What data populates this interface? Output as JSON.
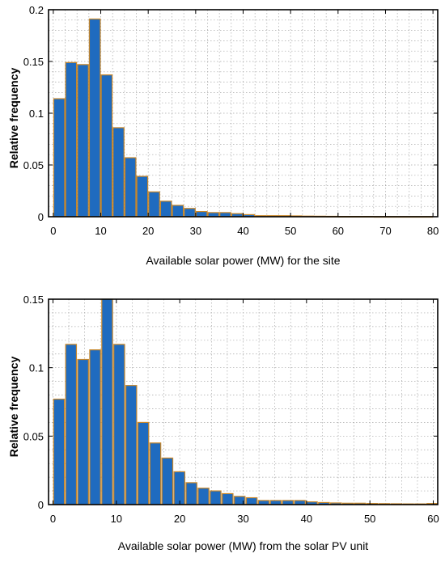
{
  "chart_data": [
    {
      "type": "bar",
      "xlabel": "Available solar power (MW) for the site",
      "ylabel": "Relative frequency",
      "xlim": [
        -1,
        81
      ],
      "ylim": [
        0,
        0.2
      ],
      "xticks": [
        0,
        10,
        20,
        30,
        40,
        50,
        60,
        70,
        80
      ],
      "xtick_labels": [
        "0",
        "10",
        "20",
        "30",
        "40",
        "50",
        "60",
        "70",
        "80"
      ],
      "yticks": [
        0,
        0.05,
        0.1,
        0.15,
        0.2
      ],
      "ytick_labels": [
        "0",
        "0.05",
        "0.1",
        "0.15",
        "0.2"
      ],
      "grid": true,
      "bar_width": 2.3,
      "bar_color": "#1f6bbf",
      "bar_edge_color": "#c8872a",
      "x": [
        1.25,
        3.75,
        6.25,
        8.75,
        11.25,
        13.75,
        16.25,
        18.75,
        21.25,
        23.75,
        26.25,
        28.75,
        31.25,
        33.75,
        36.25,
        38.75,
        41.25,
        43.75,
        46.25,
        48.75,
        51.25,
        53.75,
        56.25,
        58.75,
        61.25,
        63.75,
        66.25,
        68.75,
        71.25,
        73.75,
        76.25,
        78.75
      ],
      "values": [
        0.114,
        0.149,
        0.147,
        0.191,
        0.137,
        0.086,
        0.057,
        0.039,
        0.024,
        0.015,
        0.011,
        0.008,
        0.005,
        0.004,
        0.004,
        0.003,
        0.002,
        0.001,
        0.001,
        0.001,
        0.0008,
        0.0006,
        0.0005,
        0.0004,
        0.0003,
        0.0003,
        0.0003,
        0.0002,
        0.0002,
        0.0002,
        0.0002,
        0.0002
      ]
    },
    {
      "type": "bar",
      "xlabel": "Available solar power (MW) from the solar PV unit",
      "ylabel": "Relative frequency",
      "xlim": [
        -0.7,
        60.7
      ],
      "ylim": [
        0,
        0.15
      ],
      "xticks": [
        0,
        10,
        20,
        30,
        40,
        50,
        60
      ],
      "xtick_labels": [
        "0",
        "10",
        "20",
        "30",
        "40",
        "50",
        "60"
      ],
      "yticks": [
        0,
        0.05,
        0.1,
        0.15
      ],
      "ytick_labels": [
        "0",
        "0.05",
        "0.1",
        "0.15"
      ],
      "grid": true,
      "bar_width": 1.7,
      "bar_color": "#1f6bbf",
      "bar_edge_color": "#c8872a",
      "x": [
        0.95,
        2.85,
        4.75,
        6.65,
        8.55,
        10.45,
        12.35,
        14.25,
        16.15,
        18.05,
        19.95,
        21.85,
        23.75,
        25.65,
        27.55,
        29.45,
        31.35,
        33.25,
        35.15,
        37.05,
        38.95,
        40.85,
        42.75,
        44.65,
        46.55,
        48.45,
        50.35,
        52.25,
        54.15,
        56.05,
        57.95,
        59.85
      ],
      "values": [
        0.077,
        0.117,
        0.106,
        0.113,
        0.15,
        0.117,
        0.087,
        0.06,
        0.045,
        0.034,
        0.024,
        0.016,
        0.012,
        0.01,
        0.008,
        0.006,
        0.005,
        0.003,
        0.003,
        0.003,
        0.003,
        0.002,
        0.0015,
        0.0012,
        0.001,
        0.001,
        0.0008,
        0.0007,
        0.0006,
        0.0005,
        0.0005,
        0.0008
      ]
    }
  ]
}
